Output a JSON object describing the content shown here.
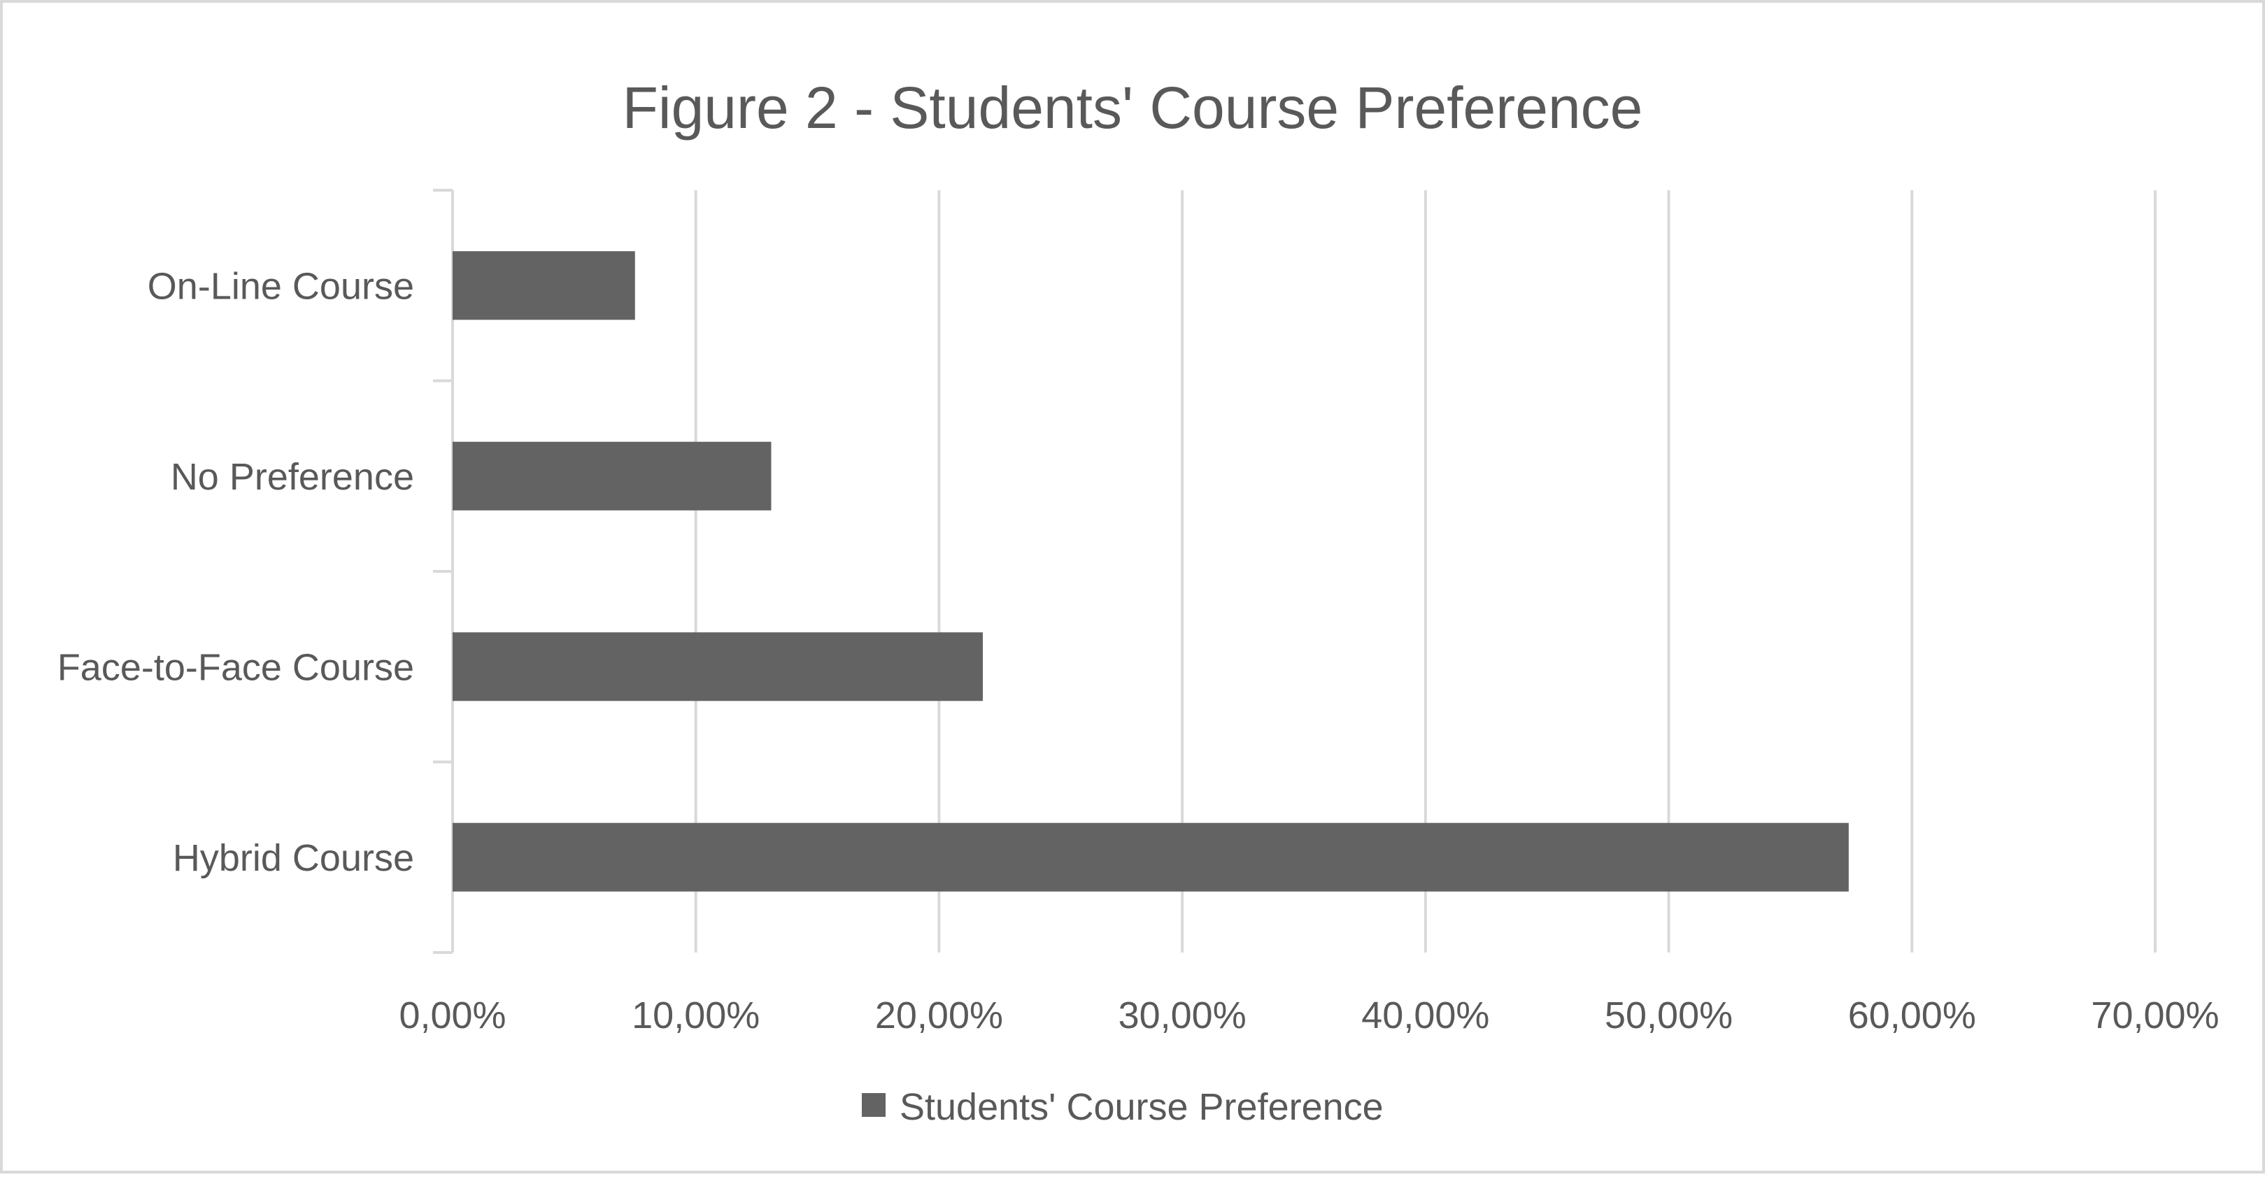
{
  "chart_data": {
    "type": "bar",
    "orientation": "horizontal",
    "title": "Figure 2 - Students' Course Preference",
    "xlabel": "",
    "ylabel": "",
    "categories": [
      "On-Line Course",
      "No Preference",
      "Face-to-Face Course",
      "Hybrid Course"
    ],
    "series": [
      {
        "name": "Students' Course Preference",
        "values": [
          7.5,
          13.1,
          21.8,
          57.4
        ],
        "color": "#636363"
      }
    ],
    "xlim": [
      0,
      70
    ],
    "xticks": [
      0,
      10,
      20,
      30,
      40,
      50,
      60,
      70
    ],
    "xtick_labels": [
      "0,00%",
      "10,00%",
      "20,00%",
      "30,00%",
      "40,00%",
      "50,00%",
      "60,00%",
      "70,00%"
    ],
    "grid": true,
    "legend_position": "bottom",
    "colors": {
      "bar": "#636363",
      "grid": "#d9d9d9",
      "text": "#595959",
      "border": "#d9d9d9"
    }
  }
}
